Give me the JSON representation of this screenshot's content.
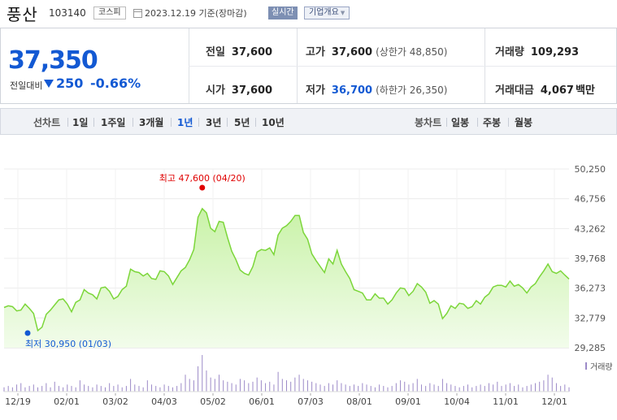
{
  "header": {
    "stock_name": "풍산",
    "stock_code": "103140",
    "market": "코스피",
    "date": "2023.12.19",
    "date_suffix": "기준(장마감)",
    "realtime_label": "실시간",
    "company_info_label": "기업개요"
  },
  "quote": {
    "price": "37,350",
    "prev_label": "전일대비",
    "change": "250",
    "change_pct": "-0.66%",
    "direction": "down",
    "prev_close_label": "전일",
    "prev_close": "37,600",
    "high_label": "고가",
    "high": "37,600",
    "upper_limit_label": "(상한가",
    "upper_limit": "48,850)",
    "volume_label": "거래량",
    "volume": "109,293",
    "open_label": "시가",
    "open": "37,600",
    "low_label": "저가",
    "low": "36,700",
    "lower_limit_label": "(하한가",
    "lower_limit": "26,350)",
    "amount_label": "거래대금",
    "amount": "4,067",
    "amount_unit": "백만"
  },
  "tabs": {
    "line_label": "선차트",
    "line": [
      "1일",
      "1주일",
      "3개월",
      "1년",
      "3년",
      "5년",
      "10년"
    ],
    "active": "1년",
    "candle_label": "봉차트",
    "candle": [
      "일봉",
      "주봉",
      "월봉"
    ]
  },
  "colors": {
    "accent": "#1359d3",
    "line": "#7cd63a",
    "fill_top": "#c9f2a8",
    "fill_bottom": "#f2fceb",
    "max": "#e00000",
    "volume": "#9c8ac8"
  },
  "chart_data": {
    "type": "area",
    "y_ticks": [
      "50,250",
      "46,756",
      "43,262",
      "39,768",
      "36,273",
      "32,779",
      "29,285"
    ],
    "ylim": [
      29285,
      50250
    ],
    "x_ticks": [
      "12/19",
      "02/01",
      "03/02",
      "04/03",
      "05/02",
      "06/01",
      "07/03",
      "08/01",
      "09/01",
      "10/04",
      "11/01",
      "12/01"
    ],
    "max_label": "최고 47,600 (04/20)",
    "min_label": "최저 30,950 (01/03)",
    "volume_label": "거래량",
    "series": [
      {
        "values": [
          34000,
          34200,
          34100,
          33600,
          33700,
          34400,
          33900,
          33300,
          31300,
          31700,
          33200,
          33700,
          34300,
          34900,
          35000,
          34400,
          33500,
          34600,
          34900,
          36100,
          35700,
          35500,
          35000,
          36300,
          36400,
          35900,
          35000,
          35300,
          36100,
          36500,
          38500,
          38200,
          38100,
          37700,
          38000,
          37400,
          37300,
          38300,
          38200,
          37700,
          36700,
          37500,
          38300,
          38700,
          39600,
          40800,
          44600,
          45600,
          45100,
          43300,
          42900,
          44100,
          44000,
          42200,
          40600,
          39600,
          38400,
          38000,
          37800,
          38800,
          40500,
          40800,
          40700,
          41000,
          40200,
          42500,
          43300,
          43600,
          44100,
          44800,
          44800,
          42800,
          42000,
          40300,
          39500,
          38800,
          38100,
          39700,
          39100,
          40700,
          39100,
          38200,
          37400,
          36100,
          35900,
          35700,
          34900,
          34900,
          35600,
          35100,
          35100,
          34400,
          34900,
          35700,
          36300,
          36200,
          35400,
          35900,
          36800,
          36400,
          35800,
          34500,
          34800,
          34400,
          32700,
          33300,
          34200,
          33900,
          34500,
          34400,
          33900,
          34100,
          34800,
          34400,
          35200,
          35600,
          36400,
          36600,
          36600,
          36400,
          37100,
          36500,
          36700,
          36300,
          35700,
          36400,
          36800,
          37600,
          38300,
          39100,
          38200,
          38000,
          38300,
          37800,
          37350
        ]
      }
    ],
    "volume_values": [
      3,
      4,
      3,
      5,
      6,
      3,
      4,
      5,
      3,
      4,
      6,
      3,
      7,
      4,
      3,
      5,
      4,
      3,
      8,
      5,
      4,
      3,
      5,
      4,
      3,
      6,
      4,
      5,
      3,
      4,
      9,
      5,
      4,
      3,
      8,
      5,
      4,
      3,
      5,
      4,
      3,
      4,
      6,
      12,
      9,
      8,
      18,
      26,
      15,
      10,
      9,
      12,
      8,
      7,
      6,
      5,
      9,
      8,
      6,
      7,
      10,
      8,
      6,
      7,
      5,
      14,
      9,
      8,
      7,
      10,
      12,
      9,
      8,
      7,
      6,
      5,
      4,
      6,
      5,
      8,
      6,
      5,
      4,
      5,
      4,
      6,
      5,
      4,
      3,
      5,
      4,
      3,
      4,
      6,
      8,
      7,
      5,
      6,
      9,
      5,
      4,
      6,
      5,
      4,
      9,
      6,
      5,
      4,
      3,
      4,
      5,
      3,
      4,
      5,
      4,
      6,
      5,
      7,
      4,
      5,
      6,
      4,
      5,
      3,
      4,
      5,
      6,
      7,
      8,
      12,
      10,
      6,
      4,
      5,
      3
    ]
  }
}
